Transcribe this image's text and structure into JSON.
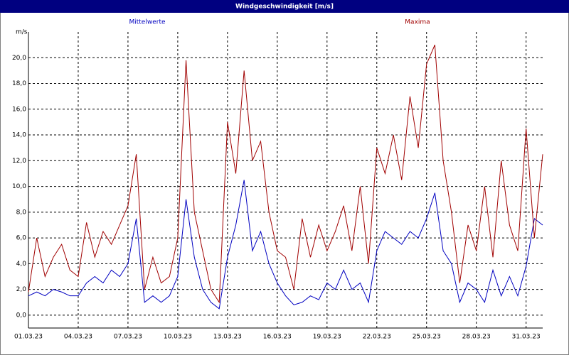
{
  "chart_data": {
    "type": "line",
    "title": "Windgeschwindigkeit [m/s]",
    "y_label": "m/s",
    "x": [
      0,
      0.5,
      1,
      1.5,
      2,
      2.5,
      3,
      3.5,
      4,
      4.5,
      5,
      5.5,
      6,
      6.5,
      7,
      7.5,
      8,
      8.5,
      9,
      9.5,
      10,
      10.5,
      11,
      11.5,
      12,
      12.5,
      13,
      13.5,
      14,
      14.5,
      15,
      15.5,
      16,
      16.5,
      17,
      17.5,
      18,
      18.5,
      19,
      19.5,
      20,
      20.5,
      21,
      21.5,
      22,
      22.5,
      23,
      23.5,
      24,
      24.5,
      25,
      25.5,
      26,
      26.5,
      27,
      27.5,
      28,
      28.5,
      29,
      29.5,
      30,
      30.5,
      31
    ],
    "series": [
      {
        "name": "Mittelwerte",
        "color": "#0000c0",
        "values": [
          1.5,
          1.8,
          1.5,
          2.0,
          1.8,
          1.5,
          1.5,
          2.5,
          3.0,
          2.5,
          3.5,
          3.0,
          4.0,
          7.5,
          1.0,
          1.5,
          1.0,
          1.5,
          3.0,
          9.0,
          4.5,
          2.0,
          1.0,
          0.5,
          4.5,
          7.0,
          10.5,
          5.0,
          6.5,
          4.0,
          2.5,
          1.5,
          0.8,
          1.0,
          1.5,
          1.2,
          2.5,
          2.0,
          3.5,
          2.0,
          2.5,
          1.0,
          5.0,
          6.5,
          6.0,
          5.5,
          6.5,
          6.0,
          7.5,
          9.5,
          5.0,
          4.0,
          1.0,
          2.5,
          2.0,
          1.0,
          3.5,
          1.5,
          3.0,
          1.5,
          3.8,
          7.5,
          7.0
        ]
      },
      {
        "name": "Maxima",
        "color": "#a00000",
        "values": [
          1.8,
          6.0,
          3.0,
          4.5,
          5.5,
          3.5,
          3.0,
          7.2,
          4.5,
          6.5,
          5.5,
          7.0,
          8.5,
          12.5,
          2.0,
          4.5,
          2.5,
          3.0,
          6.0,
          19.8,
          8.0,
          5.0,
          2.0,
          1.0,
          15.0,
          11.0,
          19.0,
          12.0,
          13.5,
          8.0,
          5.0,
          4.5,
          2.0,
          7.5,
          4.5,
          7.0,
          5.0,
          6.5,
          8.5,
          5.0,
          10.0,
          4.0,
          13.0,
          11.0,
          14.0,
          10.5,
          17.0,
          13.0,
          19.5,
          21.0,
          12.0,
          8.0,
          2.5,
          7.0,
          5.0,
          10.0,
          4.5,
          12.0,
          7.0,
          5.0,
          14.5,
          6.0,
          12.5
        ]
      }
    ],
    "xlim": [
      0,
      31
    ],
    "xticks": [
      {
        "value": 0,
        "label": "01.03.23"
      },
      {
        "value": 3,
        "label": "04.03.23"
      },
      {
        "value": 6,
        "label": "07.03.23"
      },
      {
        "value": 9,
        "label": "10.03.23"
      },
      {
        "value": 12,
        "label": "13.03.23"
      },
      {
        "value": 15,
        "label": "16.03.23"
      },
      {
        "value": 18,
        "label": "19.03.23"
      },
      {
        "value": 21,
        "label": "22.03.23"
      },
      {
        "value": 24,
        "label": "25.03.23"
      },
      {
        "value": 27,
        "label": "28.03.23"
      },
      {
        "value": 30,
        "label": "31.03.23"
      }
    ],
    "ylim": [
      -1,
      22
    ],
    "yticks": [
      {
        "value": 0,
        "label": "0,0"
      },
      {
        "value": 2,
        "label": "2,0"
      },
      {
        "value": 4,
        "label": "4,0"
      },
      {
        "value": 6,
        "label": "6,0"
      },
      {
        "value": 8,
        "label": "8,0"
      },
      {
        "value": 10,
        "label": "10,0"
      },
      {
        "value": 12,
        "label": "12,0"
      },
      {
        "value": 14,
        "label": "14,0"
      },
      {
        "value": 16,
        "label": "16,0"
      },
      {
        "value": 18,
        "label": "18,0"
      },
      {
        "value": 20,
        "label": "20,0"
      }
    ],
    "grid": true
  }
}
